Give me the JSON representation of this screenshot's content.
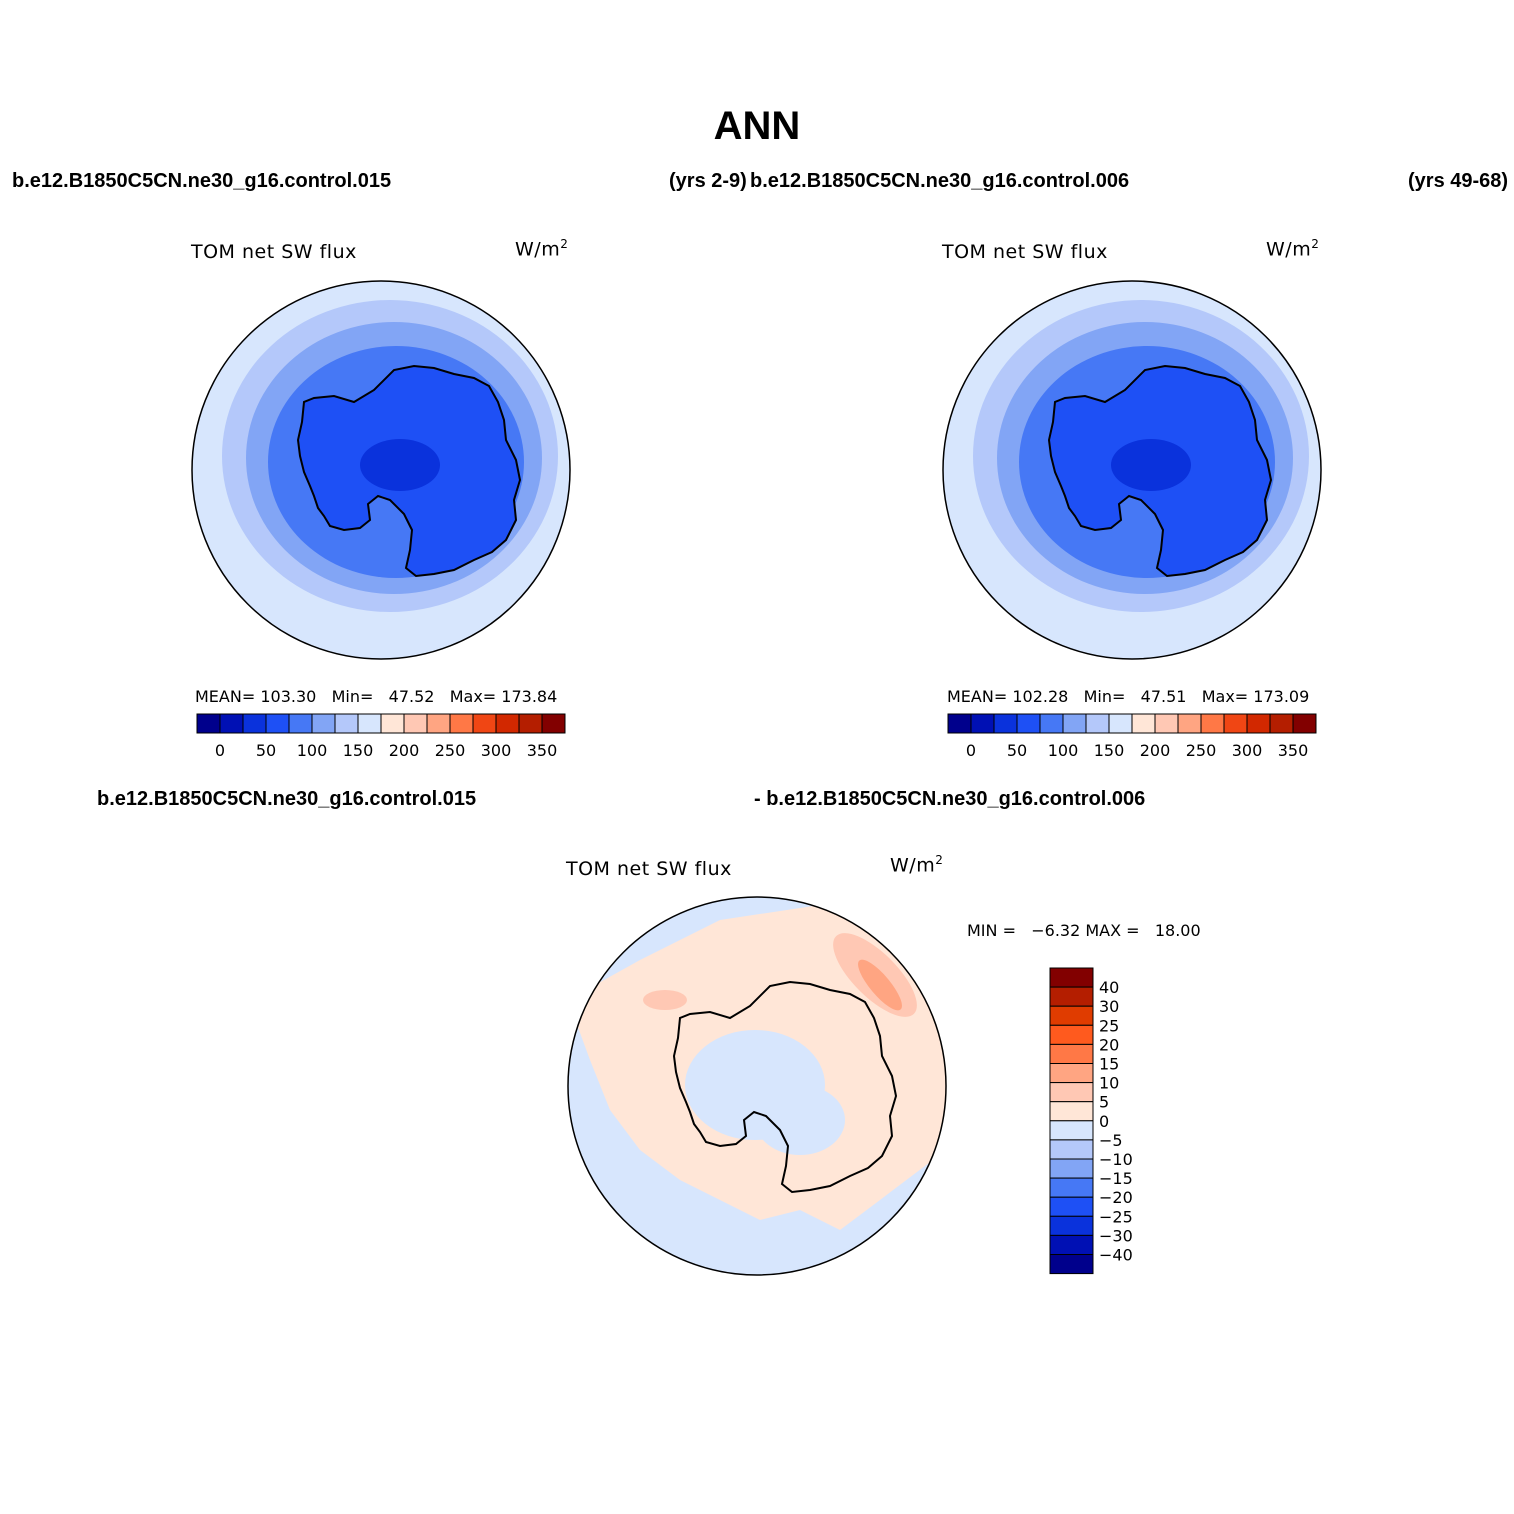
{
  "title": "ANN",
  "header_top": {
    "case1": "b.e12.B1850C5CN.ne30_g16.control.015",
    "years1": "(yrs 2-9)",
    "case2": "b.e12.B1850C5CN.ne30_g16.control.006",
    "years2": "(yrs 49-68)"
  },
  "header_bottom": {
    "case1": "b.e12.B1850C5CN.ne30_g16.control.015",
    "case2": "- b.e12.B1850C5CN.ne30_g16.control.006"
  },
  "panels": [
    {
      "title": "TOM  net  SW  flux",
      "units": "W/m",
      "units_exp": "2",
      "mean_label": "MEAN=",
      "mean": "103.30",
      "min_label": "Min=",
      "min": "47.52",
      "max_label": "Max=",
      "max": "173.84"
    },
    {
      "title": "TOM  net  SW  flux",
      "units": "W/m",
      "units_exp": "2",
      "mean_label": "MEAN=",
      "mean": "102.28",
      "min_label": "Min=",
      "min": "47.51",
      "max_label": "Max=",
      "max": "173.09"
    },
    {
      "title": "TOM  net  SW  flux",
      "units": "W/m",
      "units_exp": "2",
      "min_label": "MIN =",
      "min": "−6.32",
      "max_label": "MAX =",
      "max": "18.00"
    }
  ],
  "colorbar_top": {
    "ticks": [
      "0",
      "50",
      "100",
      "150",
      "200",
      "250",
      "300",
      "350"
    ],
    "colors": [
      "#00008c",
      "#0010b4",
      "#0a32dc",
      "#1e50f5",
      "#4678f5",
      "#82a5f5",
      "#b4c8fa",
      "#d7e6fd",
      "#ffe6d7",
      "#ffc8b4",
      "#ffa582",
      "#ff7846",
      "#f04614",
      "#d22800",
      "#b41e00",
      "#820000"
    ]
  },
  "colorbar_diff": {
    "ticks": [
      "40",
      "30",
      "25",
      "20",
      "15",
      "10",
      "5",
      "0",
      "−5",
      "−10",
      "−15",
      "−20",
      "−25",
      "−30",
      "−40"
    ],
    "colors": [
      "#820000",
      "#b41e00",
      "#e03c00",
      "#ff5a1e",
      "#ff7846",
      "#ffa582",
      "#ffc8b4",
      "#ffe6d7",
      "#d7e6fd",
      "#b4c8fa",
      "#82a5f5",
      "#4678f5",
      "#1e50f5",
      "#0a32dc",
      "#0010b4",
      "#00008c"
    ]
  },
  "field_colors": {
    "ring1": "#d7e6fd",
    "ring2": "#b4c8fa",
    "ring3": "#82a5f5",
    "ring4": "#4678f5",
    "continent": "#1e50f5",
    "plateau": "#0a32dc",
    "diff_neg": "#d7e6fd",
    "diff_pos5": "#ffe6d7",
    "diff_pos10": "#ffc8b4",
    "diff_pos15": "#ffa582"
  }
}
